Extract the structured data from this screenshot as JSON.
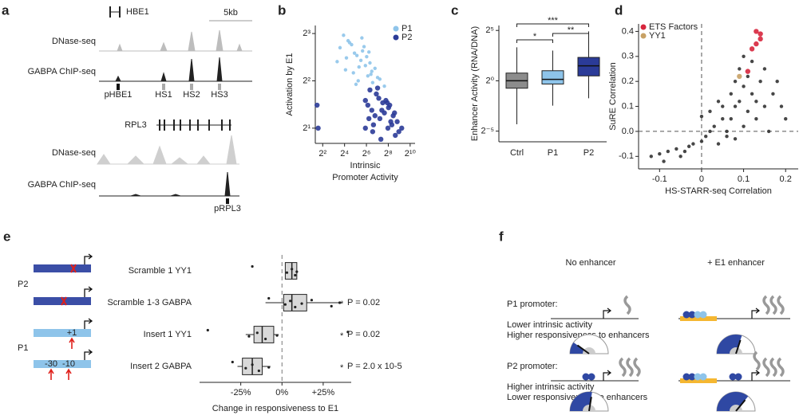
{
  "panel_labels": [
    "a",
    "b",
    "c",
    "d",
    "e",
    "f"
  ],
  "panel_a": {
    "locus1": {
      "gene": "HBE1",
      "scale": "5kb",
      "tracks": [
        "DNase-seq",
        "GABPA ChIP-seq"
      ],
      "sites": [
        "pHBE1",
        "HS1",
        "HS2",
        "HS3"
      ]
    },
    "locus2": {
      "gene": "RPL3",
      "tracks": [
        "DNase-seq",
        "GABPA ChIP-seq"
      ],
      "sites": [
        "pRPL3"
      ]
    }
  },
  "chart_data": [
    {
      "type": "scatter",
      "ylabel": "Activation by E1",
      "xlabel": [
        "Intrinsic",
        "Promoter Activity"
      ],
      "xlog": 2,
      "ylog": 2,
      "xlim": [
        2.5,
        1400
      ],
      "ylim": [
        1.6,
        9
      ],
      "xticks": [
        {
          "value": 4,
          "label": "2²"
        },
        {
          "value": 16,
          "label": "2⁴"
        },
        {
          "value": 64,
          "label": "2⁶"
        },
        {
          "value": 256,
          "label": "2⁸"
        },
        {
          "value": 1024,
          "label": "2¹⁰"
        }
      ],
      "yticks": [
        {
          "value": 2,
          "label": "2¹"
        },
        {
          "value": 4,
          "label": "2²"
        },
        {
          "value": 8,
          "label": "2³"
        }
      ],
      "legend": "top-right",
      "series": [
        {
          "name": "P1",
          "color": "#8ec4ea",
          "x": [
            12,
            20,
            35,
            60,
            90,
            30,
            15,
            45,
            70,
            110,
            25,
            50,
            80,
            18,
            40,
            130,
            22,
            65,
            95,
            28,
            55,
            150,
            10,
            38,
            75,
            200,
            33,
            85,
            17,
            48
          ],
          "y": [
            6.5,
            7.2,
            5.8,
            5.0,
            4.6,
            6.0,
            7.8,
            5.4,
            4.3,
            4.8,
            6.8,
            6.2,
            5.2,
            5.6,
            4.9,
            4.2,
            7.0,
            5.7,
            3.9,
            4.5,
            6.6,
            4.1,
            5.3,
            4.0,
            6.1,
            3.7,
            3.8,
            4.4,
            4.7,
            7.5
          ]
        },
        {
          "name": "P2",
          "color": "#2b3b98",
          "x": [
            60,
            90,
            150,
            250,
            400,
            120,
            70,
            200,
            300,
            500,
            80,
            180,
            350,
            100,
            140,
            260,
            450,
            110,
            220,
            320,
            95,
            170,
            600,
            130,
            280,
            75,
            380,
            160,
            240,
            60,
            3,
            2.8
          ],
          "y": [
            3.0,
            2.6,
            2.3,
            2.0,
            1.8,
            3.3,
            2.8,
            2.5,
            2.2,
            1.9,
            3.5,
            2.9,
            2.4,
            2.1,
            3.1,
            2.7,
            2.2,
            2.4,
            3.0,
            2.1,
            1.9,
            2.6,
            2.0,
            3.6,
            2.8,
            2.3,
            2.5,
            1.7,
            2.9,
            2.0,
            2.0,
            2.8
          ]
        }
      ]
    },
    {
      "type": "box",
      "orientation": "vertical",
      "ylabel": "Enhancer Activity (RNA/DNA)",
      "ylog": 2,
      "ylim": [
        0.015,
        45
      ],
      "yticks": [
        {
          "value": 0.03125,
          "label": "2⁻⁵"
        },
        {
          "value": 1,
          "label": "2⁰"
        },
        {
          "value": 32,
          "label": "2⁵"
        }
      ],
      "categories": [
        "Ctrl",
        "P1",
        "P2"
      ],
      "colors": [
        "#8c8c8c",
        "#8ec4ea",
        "#2b3b98"
      ],
      "boxes": [
        {
          "whisker_low": 0.05,
          "q1": 0.6,
          "median": 1.0,
          "q3": 1.7,
          "whisker_high": 10
        },
        {
          "whisker_low": 0.18,
          "q1": 0.8,
          "median": 1.1,
          "q3": 2.0,
          "whisker_high": 8
        },
        {
          "whisker_low": 0.3,
          "q1": 1.4,
          "median": 2.8,
          "q3": 5,
          "whisker_high": 30
        }
      ],
      "significance_labels": [
        "*",
        "**",
        "***"
      ]
    },
    {
      "type": "scatter",
      "ylabel": "SuRE Correlation",
      "xlabel": [
        "HS-STARR-seq Correlation"
      ],
      "xlim": [
        -0.15,
        0.23
      ],
      "ylim": [
        -0.15,
        0.43
      ],
      "zero_lines": true,
      "xticks": [
        -0.1,
        0,
        0.1,
        0.2
      ],
      "yticks": [
        -0.1,
        {
          "value": 0,
          "label": "0.0"
        },
        0.1,
        0.2,
        0.3,
        0.4
      ],
      "legend": "top-left",
      "series": [
        {
          "color": "#333333",
          "x": [
            -0.12,
            -0.1,
            -0.08,
            -0.06,
            -0.05,
            -0.03,
            -0.02,
            0.0,
            0.01,
            0.02,
            0.03,
            0.04,
            0.05,
            0.05,
            0.06,
            0.07,
            0.07,
            0.08,
            0.08,
            0.09,
            0.09,
            0.1,
            0.1,
            0.11,
            0.11,
            0.12,
            0.12,
            0.13,
            0.14,
            0.15,
            0.16,
            0.17,
            0.18,
            0.19,
            0.2,
            0.02,
            0.04,
            0.06,
            0.1,
            0.13,
            -0.09,
            -0.04,
            0.0,
            0.15,
            0.08
          ],
          "y": [
            -0.1,
            -0.09,
            -0.08,
            -0.07,
            -0.1,
            -0.06,
            -0.05,
            -0.04,
            -0.02,
            0.0,
            0.02,
            -0.05,
            0.05,
            0.1,
            0.0,
            0.15,
            0.05,
            0.2,
            0.1,
            0.12,
            0.25,
            0.18,
            0.3,
            0.08,
            0.22,
            0.15,
            0.28,
            0.05,
            0.2,
            0.1,
            0.0,
            0.15,
            0.2,
            0.1,
            0.05,
            0.08,
            0.12,
            -0.02,
            0.02,
            0.12,
            -0.12,
            -0.08,
            0.06,
            0.25,
            -0.03
          ]
        },
        {
          "name": "ETS Factors",
          "color": "#d7263d",
          "x": [
            0.13,
            0.14,
            0.14,
            0.13,
            0.12,
            0.11
          ],
          "y": [
            0.4,
            0.39,
            0.37,
            0.35,
            0.33,
            0.24
          ]
        },
        {
          "name": "YY1",
          "color": "#c8a165",
          "x": [
            0.09
          ],
          "y": [
            0.22
          ]
        }
      ]
    },
    {
      "type": "box",
      "orientation": "horizontal",
      "xlabel": "Change in responsiveness to E1",
      "xlim": [
        -0.5,
        0.42
      ],
      "zero_lines": true,
      "xticks": [
        {
          "value": -0.25,
          "label": "-25%"
        },
        {
          "value": 0,
          "label": "0%"
        },
        {
          "value": 0.25,
          "label": "+25%"
        }
      ],
      "categories": [
        "Scramble 1 YY1",
        "Scramble 1-3 GABPA",
        "Insert 1 YY1",
        "Insert 2 GABPA"
      ],
      "color": "#d9d9d9",
      "boxes": [
        {
          "whisker_low": 0.02,
          "q1": 0.02,
          "median": 0.06,
          "q3": 0.09,
          "whisker_high": 0.09
        },
        {
          "whisker_low": -0.1,
          "q1": 0.01,
          "median": 0.06,
          "q3": 0.15,
          "whisker_high": 0.35
        },
        {
          "whisker_low": -0.22,
          "q1": -0.17,
          "median": -0.12,
          "q3": -0.05,
          "whisker_high": -0.02
        },
        {
          "whisker_low": -0.27,
          "q1": -0.24,
          "median": -0.18,
          "q3": -0.12,
          "whisker_high": -0.07
        }
      ],
      "points": [
        [
          -0.18,
          0.03,
          0.06,
          0.08,
          0.09
        ],
        [
          -0.08,
          0.02,
          0.05,
          0.08,
          0.12,
          0.18,
          0.3,
          0.35
        ],
        [
          -0.45,
          -0.2,
          -0.15,
          -0.1,
          -0.03,
          0.4
        ],
        [
          -0.3,
          -0.22,
          -0.18,
          -0.14,
          -0.08
        ]
      ],
      "annotation_marker": "*",
      "annotations": [
        null,
        "P = 0.02",
        "P = 0.02",
        "P = 2.0 x 10-5"
      ]
    }
  ],
  "panel_e_diagram": {
    "groups": [
      "P2",
      "P1"
    ],
    "insert_labels": [
      "+1",
      "-30",
      "-10"
    ]
  },
  "panel_f": {
    "columns": [
      "No enhancer",
      "+ E1 enhancer"
    ],
    "rows": [
      {
        "title": "P1 promoter:",
        "lines": [
          "Lower intrinsic activity",
          "Higher responsiveness to enhancers"
        ]
      },
      {
        "title": "P2 promoter:",
        "lines": [
          "Higher intrinsic activity",
          "Lower responsiveness to enhancers"
        ]
      }
    ]
  }
}
